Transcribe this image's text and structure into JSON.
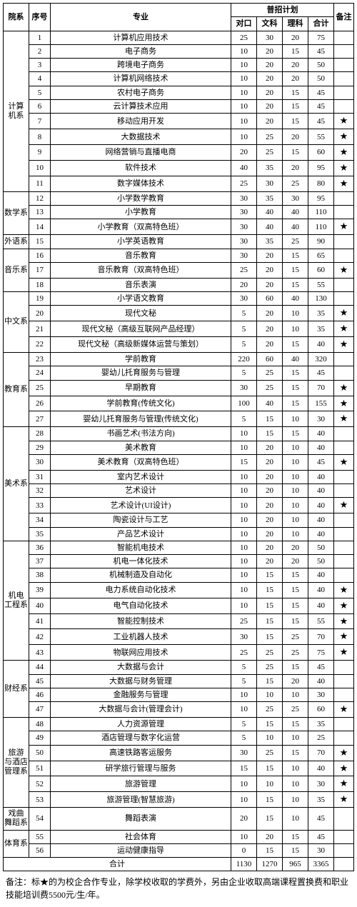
{
  "headers": {
    "dept": "院系",
    "seq": "序号",
    "major": "专业",
    "plan_group": "普招计划",
    "duikou": "对口",
    "wenke": "文科",
    "like": "理科",
    "heji": "合计",
    "beizhu": "备注"
  },
  "star": "★",
  "departments": [
    {
      "name": "计算\n机系",
      "rows": [
        {
          "seq": "1",
          "major": "计算机应用技术",
          "a": "25",
          "b": "30",
          "c": "20",
          "d": "75",
          "n": ""
        },
        {
          "seq": "2",
          "major": "电子商务",
          "a": "10",
          "b": "20",
          "c": "15",
          "d": "45",
          "n": ""
        },
        {
          "seq": "3",
          "major": "跨境电子商务",
          "a": "10",
          "b": "20",
          "c": "20",
          "d": "50",
          "n": ""
        },
        {
          "seq": "4",
          "major": "计算机网络技术",
          "a": "10",
          "b": "20",
          "c": "20",
          "d": "50",
          "n": ""
        },
        {
          "seq": "5",
          "major": "农村电子商务",
          "a": "10",
          "b": "20",
          "c": "15",
          "d": "45",
          "n": ""
        },
        {
          "seq": "6",
          "major": "云计算技术应用",
          "a": "10",
          "b": "20",
          "c": "15",
          "d": "45",
          "n": ""
        },
        {
          "seq": "7",
          "major": "移动应用开发",
          "a": "10",
          "b": "20",
          "c": "15",
          "d": "45",
          "n": "★"
        },
        {
          "seq": "8",
          "major": "大数据技术",
          "a": "10",
          "b": "25",
          "c": "20",
          "d": "55",
          "n": "★"
        },
        {
          "seq": "9",
          "major": "网络营销与直播电商",
          "a": "20",
          "b": "25",
          "c": "15",
          "d": "60",
          "n": "★"
        },
        {
          "seq": "10",
          "major": "软件技术",
          "a": "40",
          "b": "35",
          "c": "20",
          "d": "95",
          "n": "★"
        },
        {
          "seq": "11",
          "major": "数字媒体技术",
          "a": "25",
          "b": "30",
          "c": "25",
          "d": "80",
          "n": "★"
        }
      ]
    },
    {
      "name": "数学系",
      "rows": [
        {
          "seq": "12",
          "major": "小学数学教育",
          "a": "30",
          "b": "35",
          "c": "30",
          "d": "95",
          "n": ""
        },
        {
          "seq": "13",
          "major": "小学教育",
          "a": "30",
          "b": "40",
          "c": "40",
          "d": "110",
          "n": ""
        },
        {
          "seq": "14",
          "major": "小学教育（双高特色班）",
          "a": "30",
          "b": "40",
          "c": "40",
          "d": "110",
          "n": "★"
        }
      ]
    },
    {
      "name": "外语系",
      "rows": [
        {
          "seq": "15",
          "major": "小学英语教育",
          "a": "30",
          "b": "35",
          "c": "25",
          "d": "90",
          "n": ""
        }
      ]
    },
    {
      "name": "音乐系",
      "rows": [
        {
          "seq": "16",
          "major": "音乐教育",
          "a": "30",
          "b": "20",
          "c": "15",
          "d": "65",
          "n": ""
        },
        {
          "seq": "17",
          "major": "音乐教育（双高特色班）",
          "a": "25",
          "b": "20",
          "c": "15",
          "d": "60",
          "n": "★"
        },
        {
          "seq": "18",
          "major": "音乐表演",
          "a": "20",
          "b": "20",
          "c": "15",
          "d": "55",
          "n": ""
        }
      ]
    },
    {
      "name": "中文系",
      "rows": [
        {
          "seq": "19",
          "major": "小学语文教育",
          "a": "30",
          "b": "60",
          "c": "40",
          "d": "130",
          "n": ""
        },
        {
          "seq": "20",
          "major": "现代文秘",
          "a": "5",
          "b": "20",
          "c": "10",
          "d": "35",
          "n": "★"
        },
        {
          "seq": "21",
          "major": "现代文秘（高级互联网产品经理）",
          "a": "5",
          "b": "20",
          "c": "10",
          "d": "35",
          "n": "★"
        },
        {
          "seq": "22",
          "major": "现代文秘（高级新媒体运营与策划）",
          "a": "5",
          "b": "20",
          "c": "15",
          "d": "40",
          "n": "★"
        }
      ]
    },
    {
      "name": "教育系",
      "rows": [
        {
          "seq": "23",
          "major": "学前教育",
          "a": "220",
          "b": "60",
          "c": "40",
          "d": "320",
          "n": ""
        },
        {
          "seq": "24",
          "major": "婴幼儿托育服务与管理",
          "a": "5",
          "b": "25",
          "c": "15",
          "d": "45",
          "n": ""
        },
        {
          "seq": "25",
          "major": "早期教育",
          "a": "30",
          "b": "25",
          "c": "15",
          "d": "70",
          "n": "★"
        },
        {
          "seq": "26",
          "major": "学前教育(传统文化)",
          "a": "100",
          "b": "40",
          "c": "15",
          "d": "155",
          "n": "★"
        },
        {
          "seq": "27",
          "major": "婴幼儿托育服务与管理(传统文化)",
          "a": "5",
          "b": "15",
          "c": "10",
          "d": "30",
          "n": "★"
        }
      ]
    },
    {
      "name": "美术系",
      "rows": [
        {
          "seq": "28",
          "major": "书画艺术(书法方向)",
          "a": "10",
          "b": "15",
          "c": "15",
          "d": "40",
          "n": ""
        },
        {
          "seq": "29",
          "major": "美术教育",
          "a": "10",
          "b": "20",
          "c": "10",
          "d": "40",
          "n": ""
        },
        {
          "seq": "30",
          "major": "美术教育（双高特色班）",
          "a": "15",
          "b": "20",
          "c": "10",
          "d": "45",
          "n": "★"
        },
        {
          "seq": "31",
          "major": "室内艺术设计",
          "a": "10",
          "b": "20",
          "c": "10",
          "d": "40",
          "n": ""
        },
        {
          "seq": "32",
          "major": "艺术设计",
          "a": "10",
          "b": "20",
          "c": "10",
          "d": "40",
          "n": ""
        },
        {
          "seq": "33",
          "major": "艺术设计(UI设计)",
          "a": "10",
          "b": "20",
          "c": "10",
          "d": "40",
          "n": "★"
        },
        {
          "seq": "34",
          "major": "陶瓷设计与工艺",
          "a": "10",
          "b": "20",
          "c": "10",
          "d": "40",
          "n": ""
        },
        {
          "seq": "35",
          "major": "产品艺术设计",
          "a": "10",
          "b": "20",
          "c": "10",
          "d": "40",
          "n": ""
        }
      ]
    },
    {
      "name": "机电\n工程系",
      "rows": [
        {
          "seq": "36",
          "major": "智能机电技术",
          "a": "10",
          "b": "20",
          "c": "20",
          "d": "50",
          "n": ""
        },
        {
          "seq": "37",
          "major": "机电一体化技术",
          "a": "10",
          "b": "20",
          "c": "20",
          "d": "50",
          "n": ""
        },
        {
          "seq": "38",
          "major": "机械制造及自动化",
          "a": "10",
          "b": "15",
          "c": "15",
          "d": "40",
          "n": ""
        },
        {
          "seq": "39",
          "major": "电力系统自动化技术",
          "a": "10",
          "b": "15",
          "c": "15",
          "d": "40",
          "n": "★"
        },
        {
          "seq": "40",
          "major": "电气自动化技术",
          "a": "10",
          "b": "15",
          "c": "15",
          "d": "40",
          "n": "★"
        },
        {
          "seq": "41",
          "major": "智能控制技术",
          "a": "25",
          "b": "15",
          "c": "15",
          "d": "55",
          "n": "★"
        },
        {
          "seq": "42",
          "major": "工业机器人技术",
          "a": "30",
          "b": "15",
          "c": "25",
          "d": "70",
          "n": "★"
        },
        {
          "seq": "43",
          "major": "物联网应用技术",
          "a": "25",
          "b": "25",
          "c": "25",
          "d": "75",
          "n": "★"
        }
      ]
    },
    {
      "name": "财经系",
      "rows": [
        {
          "seq": "44",
          "major": "大数据与会计",
          "a": "5",
          "b": "25",
          "c": "15",
          "d": "45",
          "n": ""
        },
        {
          "seq": "45",
          "major": "大数据与财务管理",
          "a": "5",
          "b": "15",
          "c": "20",
          "d": "40",
          "n": ""
        },
        {
          "seq": "46",
          "major": "金融服务与管理",
          "a": "10",
          "b": "10",
          "c": "10",
          "d": "30",
          "n": ""
        },
        {
          "seq": "47",
          "major": "大数据与会计(管理会计)",
          "a": "10",
          "b": "25",
          "c": "25",
          "d": "60",
          "n": "★"
        }
      ]
    },
    {
      "name": "旅游\n与酒店\n管理系",
      "rows": [
        {
          "seq": "48",
          "major": "人力资源管理",
          "a": "5",
          "b": "15",
          "c": "15",
          "d": "35",
          "n": ""
        },
        {
          "seq": "49",
          "major": "酒店管理与数字化运营",
          "a": "5",
          "b": "10",
          "c": "10",
          "d": "25",
          "n": ""
        },
        {
          "seq": "50",
          "major": "高速铁路客运服务",
          "a": "30",
          "b": "25",
          "c": "15",
          "d": "70",
          "n": "★"
        },
        {
          "seq": "51",
          "major": "研学旅行管理与服务",
          "a": "15",
          "b": "15",
          "c": "10",
          "d": "40",
          "n": "★"
        },
        {
          "seq": "52",
          "major": "旅游管理",
          "a": "10",
          "b": "10",
          "c": "10",
          "d": "30",
          "n": "★"
        },
        {
          "seq": "53",
          "major": "旅游管理(智慧旅游)",
          "a": "10",
          "b": "15",
          "c": "10",
          "d": "35",
          "n": "★"
        }
      ]
    },
    {
      "name": "戏曲\n舞蹈系",
      "rows": [
        {
          "seq": "54",
          "major": "舞蹈表演",
          "a": "20",
          "b": "15",
          "c": "10",
          "d": "45",
          "n": ""
        }
      ]
    },
    {
      "name": "体育系",
      "rows": [
        {
          "seq": "55",
          "major": "社会体育",
          "a": "10",
          "b": "20",
          "c": "15",
          "d": "45",
          "n": ""
        },
        {
          "seq": "56",
          "major": "运动健康指导",
          "a": "0",
          "b": "15",
          "c": "15",
          "d": "30",
          "n": ""
        }
      ]
    }
  ],
  "total": {
    "label": "合计",
    "a": "1130",
    "b": "1270",
    "c": "965",
    "d": "3365",
    "n": ""
  },
  "footnote": "备注：标★的为校企合作专业，除学校收取的学费外，另由企业收取高端课程置换费和职业技能培训费5500元/生/年。"
}
